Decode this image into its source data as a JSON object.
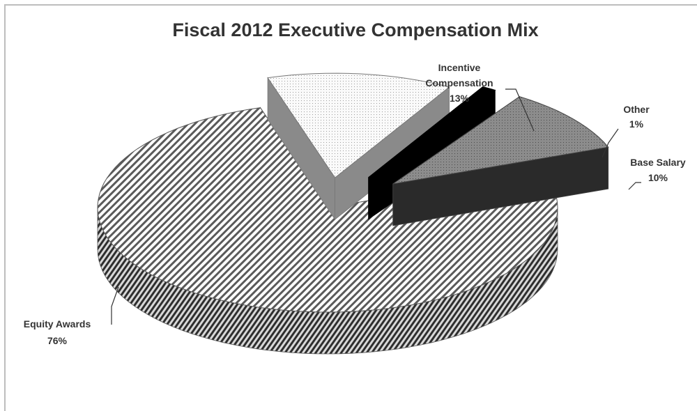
{
  "chart_data": {
    "type": "pie",
    "title": "Fiscal 2012 Executive Compensation Mix",
    "slices": [
      {
        "name": "Equity Awards",
        "value": 76,
        "label": "76%"
      },
      {
        "name": "Incentive",
        "name2": "Compensation",
        "value": 13,
        "label": "13%"
      },
      {
        "name": "Other",
        "value": 1,
        "label": "1%"
      },
      {
        "name": "Base Salary",
        "value": 10,
        "label": "10%"
      }
    ],
    "legend": "none",
    "data_labels": "outside with leader lines",
    "exploded": true,
    "three_d": true
  },
  "colors": {
    "equity": "#8a8a8a",
    "incentive": "#ececec",
    "other": "#000000",
    "base_salary": "#7d7d7d",
    "frame_border": "#bdbdbd"
  }
}
